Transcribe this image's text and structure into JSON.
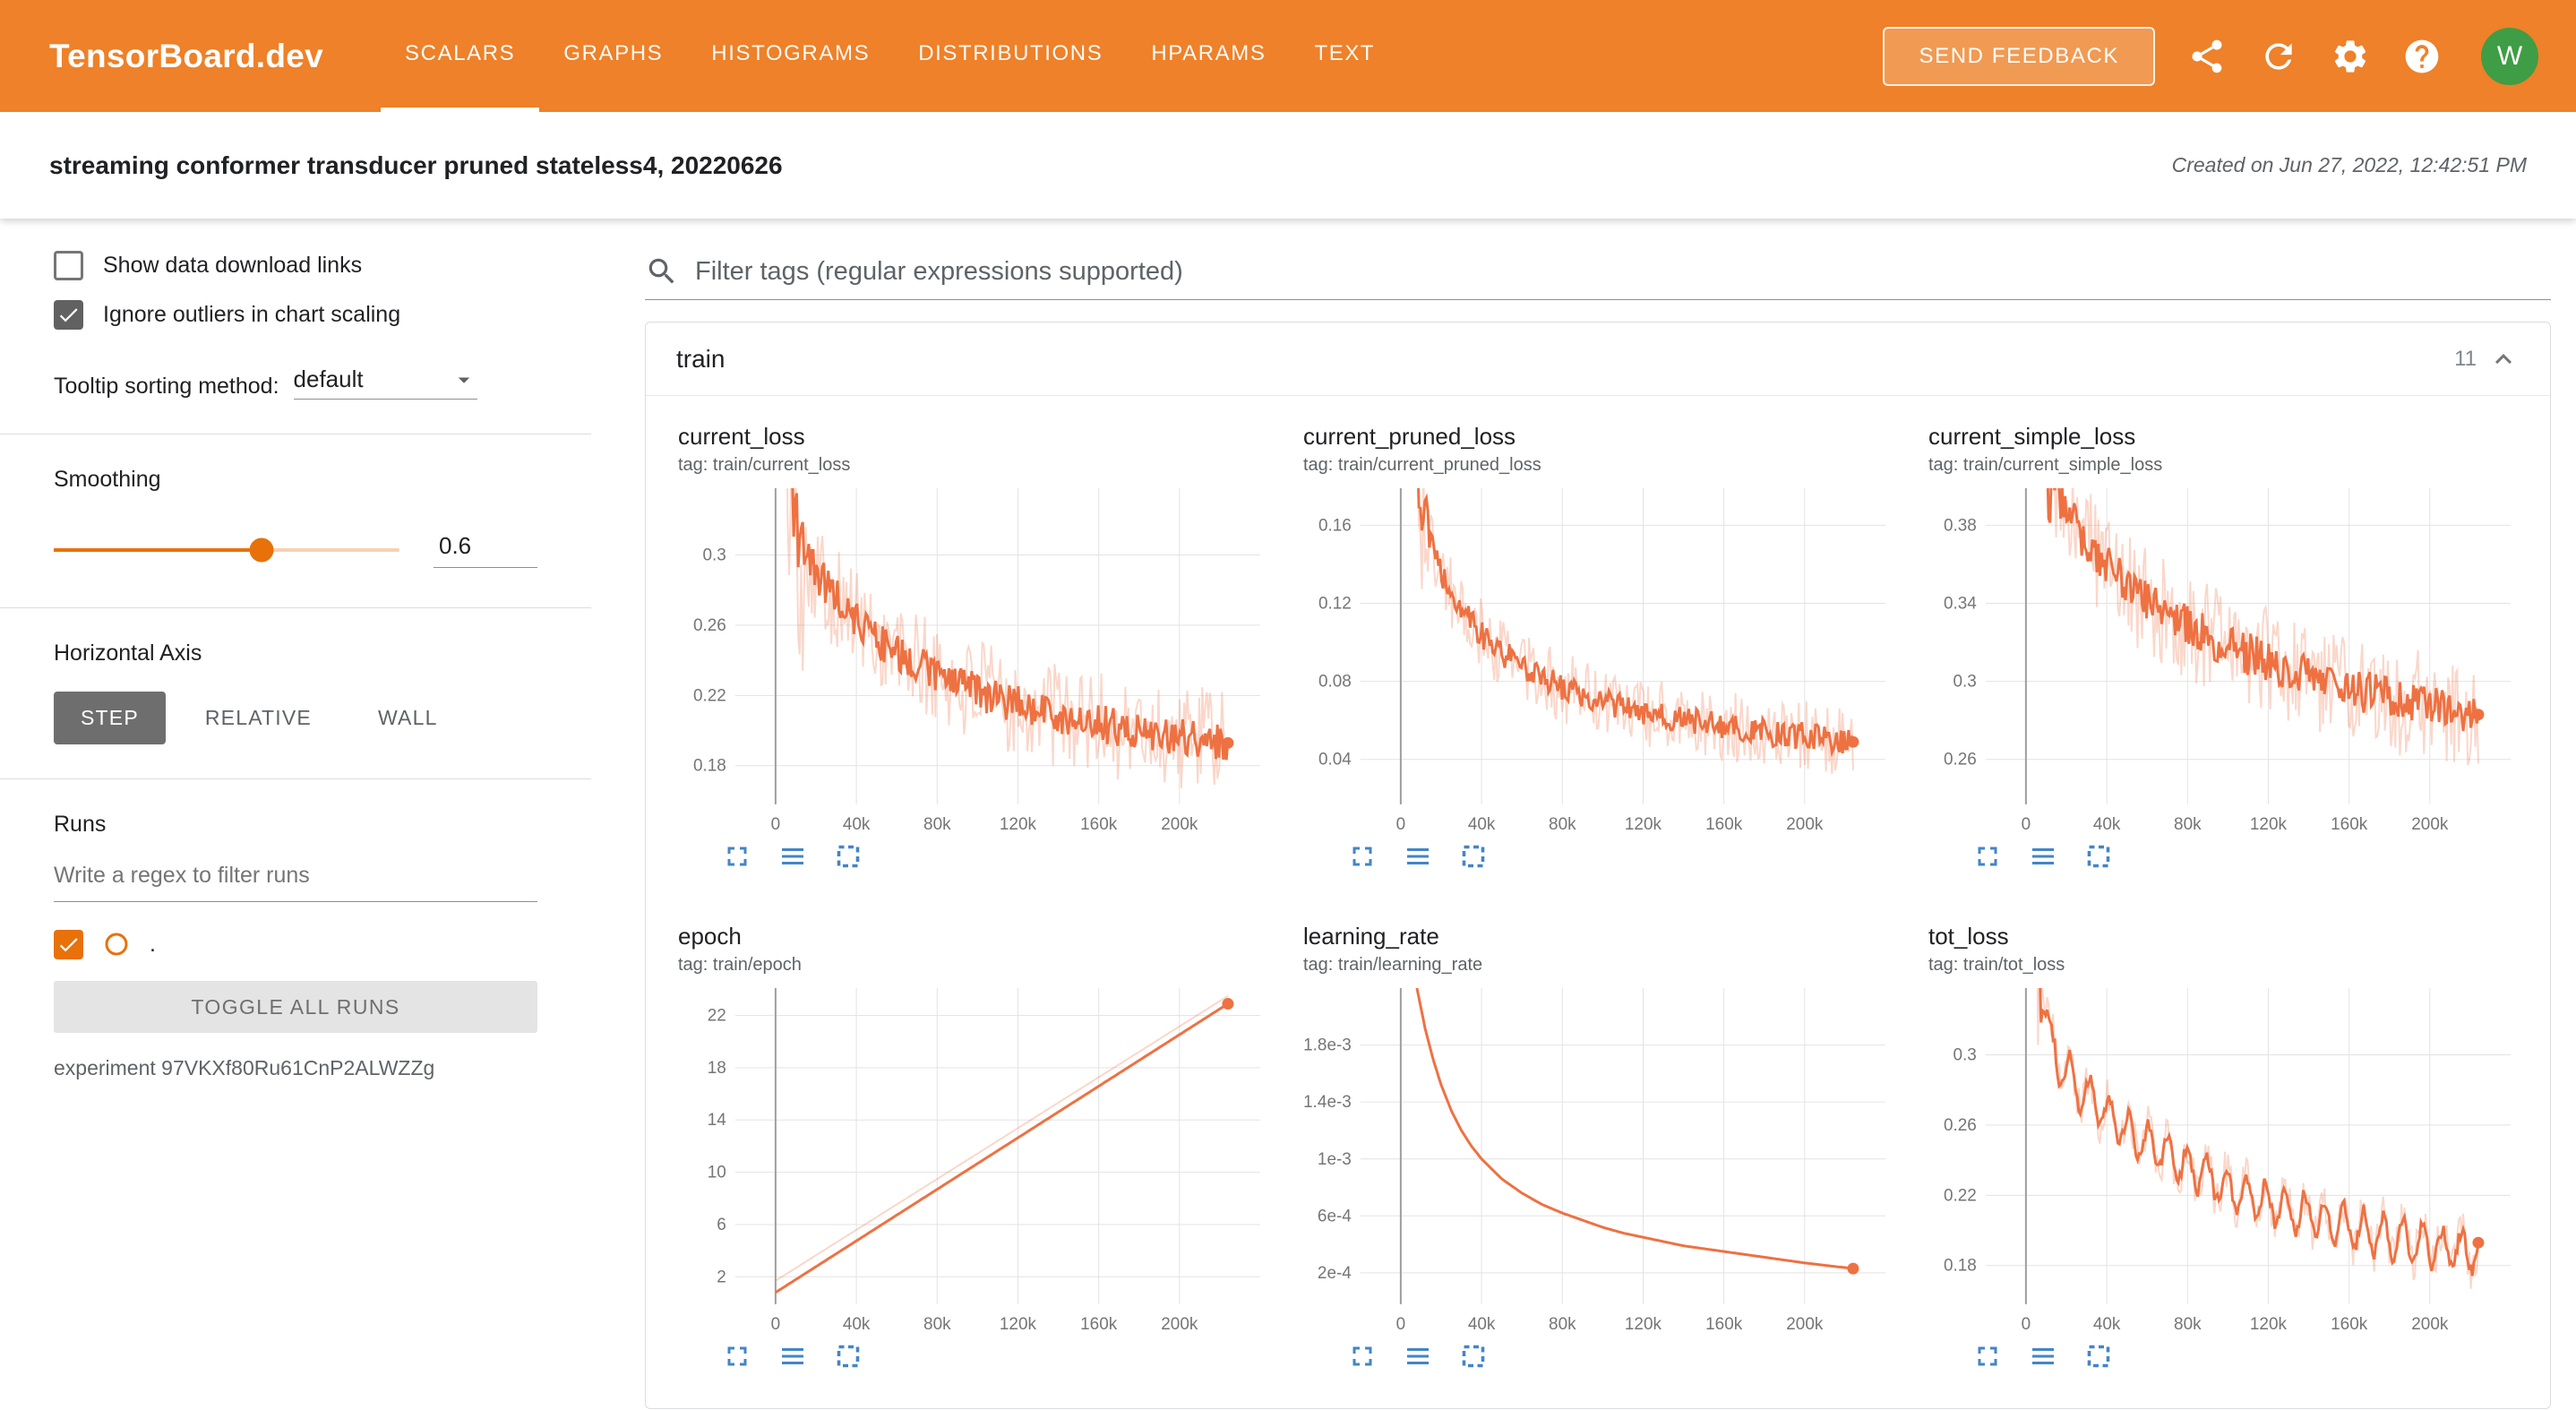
{
  "colors": {
    "header_bg": "#ee8129",
    "accent_orange": "#e8710a",
    "run_line": "#ee7142",
    "run_line_light": "rgba(238,113,66,0.28)",
    "avatar_bg": "#3f9d45",
    "icon_blue": "#4285c9",
    "selected_button_bg": "#6e6e6e"
  },
  "header": {
    "logo": "TensorBoard.dev",
    "tabs": [
      "SCALARS",
      "GRAPHS",
      "HISTOGRAMS",
      "DISTRIBUTIONS",
      "HPARAMS",
      "TEXT"
    ],
    "active_tab": "SCALARS",
    "send_feedback": "SEND FEEDBACK",
    "icons": [
      "share-icon",
      "refresh-icon",
      "settings-icon",
      "help-icon"
    ],
    "avatar": "W"
  },
  "subheader": {
    "title": "streaming conformer transducer pruned stateless4, 20220626",
    "created": "Created on Jun 27, 2022, 12:42:51 PM"
  },
  "sidebar": {
    "show_download": {
      "label": "Show data download links",
      "checked": false
    },
    "ignore_outliers": {
      "label": "Ignore outliers in chart scaling",
      "checked": true
    },
    "tooltip_sorting": {
      "label": "Tooltip sorting method:",
      "value": "default"
    },
    "smoothing": {
      "label": "Smoothing",
      "value": "0.6",
      "percent": 60
    },
    "horizontal_axis": {
      "label": "Horizontal Axis",
      "options": [
        "STEP",
        "RELATIVE",
        "WALL"
      ],
      "selected": "STEP"
    },
    "runs": {
      "label": "Runs",
      "filter_placeholder": "Write a regex to filter runs",
      "run_name": ".",
      "run_checked": true,
      "toggle_all": "TOGGLE ALL RUNS",
      "experiment": "experiment 97VKXf80Ru61CnP2ALWZZg"
    }
  },
  "main": {
    "filter_placeholder": "Filter tags (regular expressions supported)",
    "card": {
      "title": "train",
      "count": "11"
    }
  },
  "chart_data": [
    {
      "id": "current_loss",
      "type": "line",
      "title": "current_loss",
      "tag": "tag: train/current_loss",
      "xlim": [
        -20000,
        240000
      ],
      "ylim": [
        0.158,
        0.338
      ],
      "xticks": [
        0,
        40000,
        80000,
        120000,
        160000,
        200000
      ],
      "xtick_labels": [
        "0",
        "40k",
        "80k",
        "120k",
        "160k",
        "200k"
      ],
      "yticks": [
        0.18,
        0.22,
        0.26,
        0.3
      ],
      "ytick_labels": [
        "0.18",
        "0.22",
        "0.26",
        "0.3"
      ],
      "trend": [
        [
          0,
          0.55
        ],
        [
          3000,
          0.42
        ],
        [
          6000,
          0.36
        ],
        [
          10000,
          0.315
        ],
        [
          15000,
          0.3
        ],
        [
          20000,
          0.29
        ],
        [
          30000,
          0.276
        ],
        [
          40000,
          0.263
        ],
        [
          50000,
          0.252
        ],
        [
          60000,
          0.245
        ],
        [
          70000,
          0.238
        ],
        [
          80000,
          0.231
        ],
        [
          90000,
          0.226
        ],
        [
          100000,
          0.222
        ],
        [
          110000,
          0.218
        ],
        [
          120000,
          0.215
        ],
        [
          130000,
          0.212
        ],
        [
          140000,
          0.209
        ],
        [
          150000,
          0.206
        ],
        [
          160000,
          0.204
        ],
        [
          170000,
          0.202
        ],
        [
          180000,
          0.2
        ],
        [
          190000,
          0.198
        ],
        [
          200000,
          0.196
        ],
        [
          212000,
          0.195
        ],
        [
          224000,
          0.193
        ]
      ],
      "noise_raw": 0.03,
      "noise_smooth": 0.011,
      "early_until": 14000,
      "early_factor": 2.5,
      "end_marker": true
    },
    {
      "id": "current_pruned_loss",
      "type": "line",
      "title": "current_pruned_loss",
      "tag": "tag: train/current_pruned_loss",
      "xlim": [
        -20000,
        240000
      ],
      "ylim": [
        0.017,
        0.179
      ],
      "xticks": [
        0,
        40000,
        80000,
        120000,
        160000,
        200000
      ],
      "xtick_labels": [
        "0",
        "40k",
        "80k",
        "120k",
        "160k",
        "200k"
      ],
      "yticks": [
        0.04,
        0.08,
        0.12,
        0.16
      ],
      "ytick_labels": [
        "0.04",
        "0.08",
        "0.12",
        "0.16"
      ],
      "trend": [
        [
          0,
          0.42
        ],
        [
          3000,
          0.3
        ],
        [
          6000,
          0.22
        ],
        [
          10000,
          0.168
        ],
        [
          15000,
          0.149
        ],
        [
          20000,
          0.136
        ],
        [
          30000,
          0.116
        ],
        [
          40000,
          0.104
        ],
        [
          50000,
          0.095
        ],
        [
          60000,
          0.088
        ],
        [
          70000,
          0.082
        ],
        [
          80000,
          0.077
        ],
        [
          90000,
          0.073
        ],
        [
          100000,
          0.07
        ],
        [
          110000,
          0.067
        ],
        [
          120000,
          0.064
        ],
        [
          130000,
          0.062
        ],
        [
          140000,
          0.06
        ],
        [
          150000,
          0.059
        ],
        [
          160000,
          0.057
        ],
        [
          170000,
          0.056
        ],
        [
          180000,
          0.054
        ],
        [
          190000,
          0.053
        ],
        [
          200000,
          0.052
        ],
        [
          212000,
          0.05
        ],
        [
          224000,
          0.049
        ]
      ],
      "noise_raw": 0.018,
      "noise_smooth": 0.007,
      "early_until": 14000,
      "early_factor": 2.5,
      "end_marker": true
    },
    {
      "id": "current_simple_loss",
      "type": "line",
      "title": "current_simple_loss",
      "tag": "tag: train/current_simple_loss",
      "xlim": [
        -20000,
        240000
      ],
      "ylim": [
        0.237,
        0.399
      ],
      "xticks": [
        0,
        40000,
        80000,
        120000,
        160000,
        200000
      ],
      "xtick_labels": [
        "0",
        "40k",
        "80k",
        "120k",
        "160k",
        "200k"
      ],
      "yticks": [
        0.26,
        0.3,
        0.34,
        0.38
      ],
      "ytick_labels": [
        "0.26",
        "0.3",
        "0.34",
        "0.38"
      ],
      "trend": [
        [
          0,
          0.62
        ],
        [
          3000,
          0.52
        ],
        [
          6000,
          0.45
        ],
        [
          10000,
          0.415
        ],
        [
          15000,
          0.398
        ],
        [
          20000,
          0.387
        ],
        [
          30000,
          0.371
        ],
        [
          40000,
          0.359
        ],
        [
          50000,
          0.349
        ],
        [
          60000,
          0.341
        ],
        [
          70000,
          0.334
        ],
        [
          80000,
          0.328
        ],
        [
          90000,
          0.323
        ],
        [
          100000,
          0.318
        ],
        [
          110000,
          0.314
        ],
        [
          120000,
          0.31
        ],
        [
          130000,
          0.306
        ],
        [
          140000,
          0.303
        ],
        [
          150000,
          0.3
        ],
        [
          160000,
          0.297
        ],
        [
          170000,
          0.294
        ],
        [
          180000,
          0.291
        ],
        [
          190000,
          0.289
        ],
        [
          200000,
          0.287
        ],
        [
          212000,
          0.285
        ],
        [
          224000,
          0.283
        ]
      ],
      "noise_raw": 0.028,
      "noise_smooth": 0.011,
      "early_until": 14000,
      "early_factor": 2.5,
      "end_marker": true
    },
    {
      "id": "epoch",
      "type": "line",
      "title": "epoch",
      "tag": "tag: train/epoch",
      "xlim": [
        -20000,
        240000
      ],
      "ylim": [
        -0.1,
        24.1
      ],
      "xticks": [
        0,
        40000,
        80000,
        120000,
        160000,
        200000
      ],
      "xtick_labels": [
        "0",
        "40k",
        "80k",
        "120k",
        "160k",
        "200k"
      ],
      "yticks": [
        2,
        6,
        10,
        14,
        18,
        22
      ],
      "ytick_labels": [
        "2",
        "6",
        "10",
        "14",
        "18",
        "22"
      ],
      "trend": [
        [
          0,
          0.8
        ],
        [
          224000,
          22.9
        ]
      ],
      "trend_raw": [
        [
          0,
          1.7
        ],
        [
          224000,
          23.5
        ]
      ],
      "noise_raw": 0,
      "noise_smooth": 0,
      "end_marker": true
    },
    {
      "id": "learning_rate",
      "type": "line",
      "title": "learning_rate",
      "tag": "tag: train/learning_rate",
      "xlim": [
        -20000,
        240000
      ],
      "ylim": [
        -2e-05,
        0.0022
      ],
      "xticks": [
        0,
        40000,
        80000,
        120000,
        160000,
        200000
      ],
      "xtick_labels": [
        "0",
        "40k",
        "80k",
        "120k",
        "160k",
        "200k"
      ],
      "yticks": [
        0.0002,
        0.0006,
        0.001,
        0.0014,
        0.0018
      ],
      "ytick_labels": [
        "2e-4",
        "6e-4",
        "1e-3",
        "1.4e-3",
        "1.8e-3"
      ],
      "trend": [
        [
          0,
          0.0031
        ],
        [
          4000,
          0.0026
        ],
        [
          8000,
          0.0022
        ],
        [
          12000,
          0.00192
        ],
        [
          16000,
          0.0017
        ],
        [
          20000,
          0.00152
        ],
        [
          25000,
          0.00134
        ],
        [
          30000,
          0.0012
        ],
        [
          35000,
          0.00109
        ],
        [
          40000,
          0.001
        ],
        [
          50000,
          0.00086
        ],
        [
          60000,
          0.00076
        ],
        [
          70000,
          0.00068
        ],
        [
          80000,
          0.00062
        ],
        [
          90000,
          0.00057
        ],
        [
          100000,
          0.00052
        ],
        [
          110000,
          0.00048
        ],
        [
          120000,
          0.00045
        ],
        [
          130000,
          0.00042
        ],
        [
          140000,
          0.00039
        ],
        [
          150000,
          0.00037
        ],
        [
          160000,
          0.00035
        ],
        [
          170000,
          0.00033
        ],
        [
          180000,
          0.00031
        ],
        [
          190000,
          0.00029
        ],
        [
          200000,
          0.00027
        ],
        [
          212000,
          0.00025
        ],
        [
          224000,
          0.00023
        ]
      ],
      "noise_raw": 0,
      "noise_smooth": 0,
      "end_marker": true
    },
    {
      "id": "tot_loss",
      "type": "line",
      "title": "tot_loss",
      "tag": "tag: train/tot_loss",
      "xlim": [
        -20000,
        240000
      ],
      "ylim": [
        0.158,
        0.338
      ],
      "xticks": [
        0,
        40000,
        80000,
        120000,
        160000,
        200000
      ],
      "xtick_labels": [
        "0",
        "40k",
        "80k",
        "120k",
        "160k",
        "200k"
      ],
      "yticks": [
        0.18,
        0.22,
        0.26,
        0.3
      ],
      "ytick_labels": [
        "0.18",
        "0.22",
        "0.26",
        "0.3"
      ],
      "trend": [
        [
          0,
          0.5
        ],
        [
          3000,
          0.42
        ],
        [
          6000,
          0.36
        ],
        [
          9000,
          0.325
        ],
        [
          12000,
          0.308
        ],
        [
          16000,
          0.297
        ],
        [
          20000,
          0.29
        ],
        [
          30000,
          0.277
        ],
        [
          40000,
          0.266
        ],
        [
          50000,
          0.257
        ],
        [
          60000,
          0.249
        ],
        [
          70000,
          0.242
        ],
        [
          80000,
          0.236
        ],
        [
          90000,
          0.23
        ],
        [
          100000,
          0.225
        ],
        [
          110000,
          0.22
        ],
        [
          120000,
          0.216
        ],
        [
          130000,
          0.212
        ],
        [
          140000,
          0.209
        ],
        [
          150000,
          0.205
        ],
        [
          160000,
          0.202
        ],
        [
          170000,
          0.199
        ],
        [
          180000,
          0.196
        ],
        [
          190000,
          0.194
        ],
        [
          200000,
          0.191
        ],
        [
          212000,
          0.189
        ],
        [
          224000,
          0.187
        ]
      ],
      "osc": {
        "amp": 0.011,
        "period": 9700
      },
      "noise_raw": 0.012,
      "noise_smooth": 0.004,
      "early_until": 8000,
      "early_factor": 4,
      "end_marker": true
    }
  ]
}
